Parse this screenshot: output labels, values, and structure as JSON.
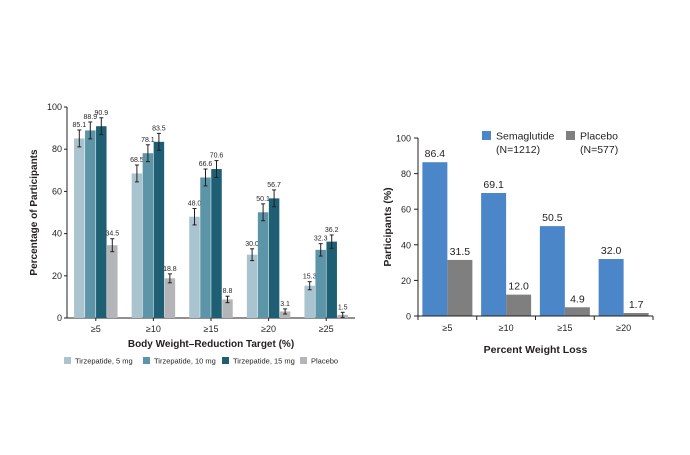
{
  "chart_data": [
    {
      "type": "bar",
      "categories": [
        "≥5",
        "≥10",
        "≥15",
        "≥20",
        "≥25"
      ],
      "series": [
        {
          "name": "Tirzepatide, 5 mg",
          "color": "#a9c4cf",
          "values": [
            85.1,
            68.5,
            48.0,
            30.0,
            15.3
          ],
          "labels": [
            "85.1",
            "68.5",
            "48.0",
            "30.0",
            "15.3"
          ]
        },
        {
          "name": "Tirzepatide, 10 mg",
          "color": "#5d95a8",
          "values": [
            88.9,
            78.1,
            66.6,
            50.1,
            32.3
          ],
          "labels": [
            "88.9",
            "78.1",
            "66.6",
            "50.1",
            "32.3"
          ]
        },
        {
          "name": "Tirzepatide, 15 mg",
          "color": "#1f5f73",
          "values": [
            90.9,
            83.5,
            70.6,
            56.7,
            36.2
          ],
          "labels": [
            "90.9",
            "83.5",
            "70.6",
            "56.7",
            "36.2"
          ]
        },
        {
          "name": "Placebo",
          "color": "#b4b5b9",
          "values": [
            34.5,
            18.8,
            8.8,
            3.1,
            1.5
          ],
          "labels": [
            "34.5",
            "18.8",
            "8.8",
            "3.1",
            "1.5"
          ]
        }
      ],
      "error_bars": true,
      "xlabel": "Body Weight–Reduction Target (%)",
      "ylabel": "Percentage of Participants",
      "ylim": [
        0,
        100
      ],
      "yticks": [
        "0",
        "20",
        "40",
        "60",
        "80",
        "100"
      ],
      "legend": "bottom"
    },
    {
      "type": "bar",
      "categories": [
        "≥5",
        "≥10",
        "≥15",
        "≥20"
      ],
      "series": [
        {
          "name": "Semaglutide",
          "sublabel": "(N=1212)",
          "color": "#4a86c8",
          "values": [
            86.4,
            69.1,
            50.5,
            32.0
          ],
          "labels": [
            "86.4",
            "69.1",
            "50.5",
            "32.0"
          ]
        },
        {
          "name": "Placebo",
          "sublabel": "(N=577)",
          "color": "#7f7f7f",
          "values": [
            31.5,
            12.0,
            4.9,
            1.7
          ],
          "labels": [
            "31.5",
            "12.0",
            "4.9",
            "1.7"
          ]
        }
      ],
      "xlabel": "Percent Weight Loss",
      "ylabel": "Participants (%)",
      "ylim": [
        0,
        100
      ],
      "yticks": [
        "0",
        "20",
        "40",
        "60",
        "80",
        "100"
      ],
      "legend": "top-right"
    }
  ]
}
